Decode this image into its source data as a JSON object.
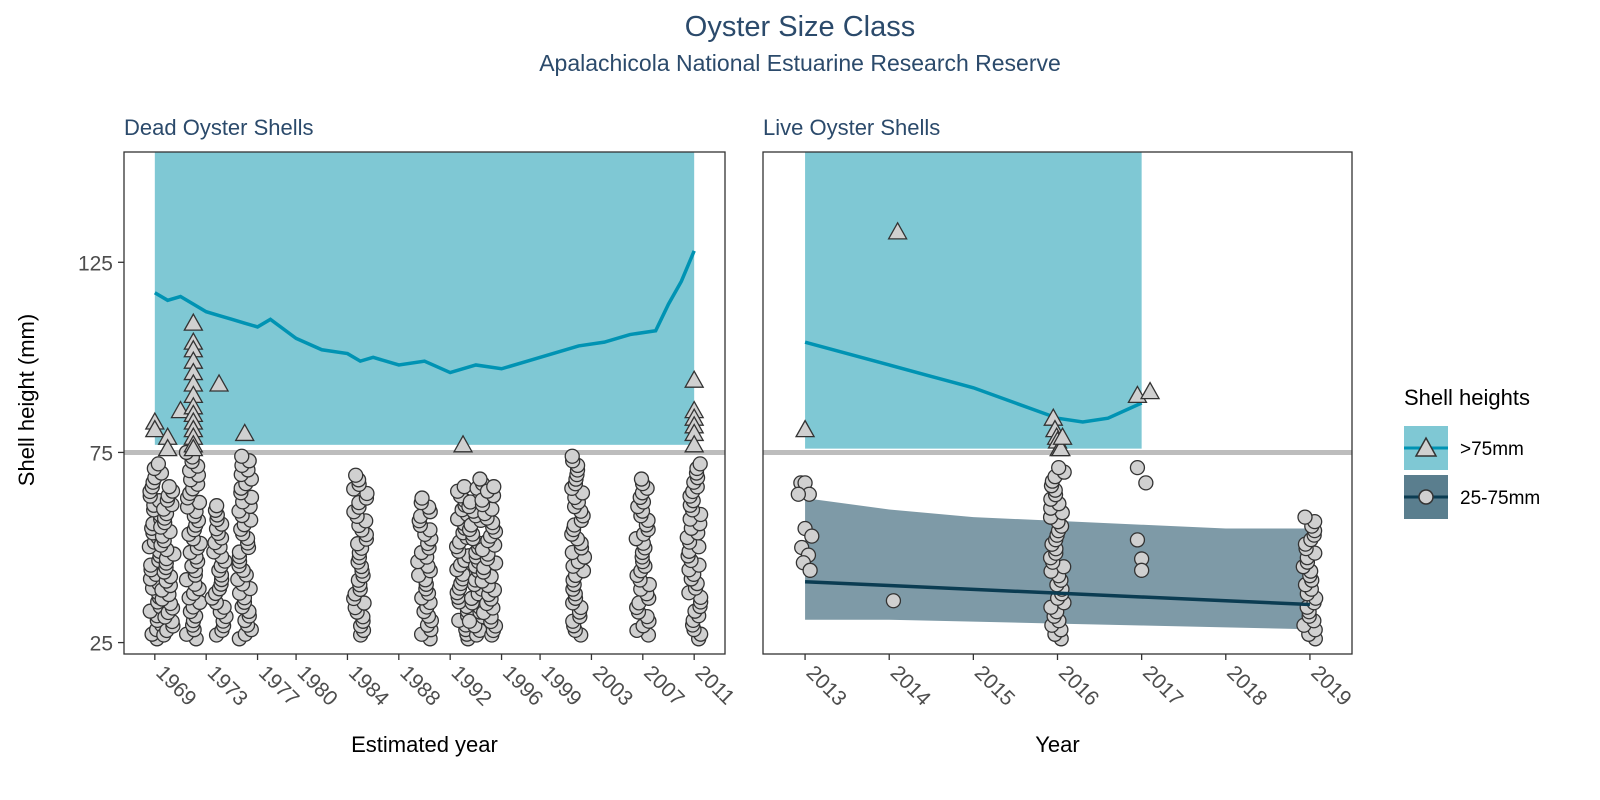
{
  "figure": {
    "title": "Oyster Size Class",
    "subtitle": "Apalachicola National Estuarine Research Reserve",
    "ylabel": "Shell height (mm)",
    "colors": {
      "title": "#2b4a6b",
      "band_large": "#7fc8d4",
      "line_large": "#0093b3",
      "band_small": "#5a7e8e",
      "line_small": "#0b3c52",
      "point_fill": "#d0d0d0",
      "point_stroke": "#333333",
      "threshold": "#bdbdbd"
    }
  },
  "legend": {
    "title": "Shell heights",
    "items": [
      {
        "label": ">75mm",
        "shape": "triangle"
      },
      {
        "label": "25-75mm",
        "shape": "circle"
      }
    ]
  },
  "chart_data": [
    {
      "type": "scatter",
      "panel_title": "Dead Oyster Shells",
      "xlabel": "Estimated year",
      "ylabel": "Shell height (mm)",
      "xlim": [
        1966.6,
        2013.4
      ],
      "ylim": [
        22,
        154
      ],
      "x_ticks": [
        1969,
        1973,
        1977,
        1980,
        1984,
        1988,
        1992,
        1996,
        1999,
        2003,
        2007,
        2011
      ],
      "x_tick_labels": [
        "1969",
        "1973",
        "1977",
        "1980",
        "1984",
        "1988",
        "1992",
        "1996",
        "1999",
        "2003",
        "2007",
        "2011"
      ],
      "y_ticks": [
        25,
        75,
        125
      ],
      "threshold": 75,
      "band_large": {
        "x_range": [
          1969,
          2011
        ],
        "lower": 77,
        "upper": 154
      },
      "trend_large": {
        "x": [
          1969,
          1970,
          1971,
          1972,
          1973,
          1974,
          1975,
          1976,
          1977,
          1978,
          1980,
          1982,
          1984,
          1985,
          1986,
          1988,
          1990,
          1992,
          1994,
          1996,
          1998,
          2000,
          2002,
          2004,
          2006,
          2008,
          2009,
          2010,
          2011
        ],
        "y": [
          117,
          115,
          116,
          114,
          112,
          111,
          110,
          109,
          108,
          110,
          105,
          102,
          101,
          99,
          100,
          98,
          99,
          96,
          98,
          97,
          99,
          101,
          103,
          104,
          106,
          107,
          114,
          120,
          128
        ]
      },
      "large_points": {
        "x": [
          1969,
          1969,
          1970,
          1970,
          1971,
          1972,
          1972,
          1972,
          1972,
          1972,
          1972,
          1972,
          1972,
          1972,
          1972,
          1972,
          1972,
          1972,
          1972,
          1974,
          1976,
          1993,
          2011,
          2011,
          2011,
          2011,
          2011,
          2011
        ],
        "y": [
          83,
          81,
          79,
          76,
          86,
          109,
          104,
          102,
          99,
          96,
          93,
          90,
          87,
          85,
          83,
          81,
          79,
          77,
          76,
          93,
          80,
          77,
          94,
          86,
          84,
          82,
          80,
          77
        ]
      },
      "small_columns": [
        {
          "x": 1969,
          "min": 26,
          "max": 72
        },
        {
          "x": 1970,
          "min": 27,
          "max": 66
        },
        {
          "x": 1972,
          "min": 26,
          "max": 75
        },
        {
          "x": 1974,
          "min": 27,
          "max": 61
        },
        {
          "x": 1976,
          "min": 26,
          "max": 74
        },
        {
          "x": 1985,
          "min": 27,
          "max": 69
        },
        {
          "x": 1990,
          "min": 26,
          "max": 63
        },
        {
          "x": 1993,
          "min": 26,
          "max": 66
        },
        {
          "x": 1994,
          "min": 27,
          "max": 68
        },
        {
          "x": 1995,
          "min": 27,
          "max": 66
        },
        {
          "x": 2002,
          "min": 27,
          "max": 74
        },
        {
          "x": 2007,
          "min": 27,
          "max": 68
        },
        {
          "x": 2011,
          "min": 26,
          "max": 72
        }
      ]
    },
    {
      "type": "scatter",
      "panel_title": "Live Oyster Shells",
      "xlabel": "Year",
      "ylabel": "Shell height (mm)",
      "xlim": [
        2012.5,
        2019.5
      ],
      "ylim": [
        22,
        154
      ],
      "x_ticks": [
        2013,
        2014,
        2015,
        2016,
        2017,
        2018,
        2019
      ],
      "x_tick_labels": [
        "2013",
        "2014",
        "2015",
        "2016",
        "2017",
        "2018",
        "2019"
      ],
      "y_ticks": [
        25,
        75,
        125
      ],
      "threshold": 75,
      "band_large": {
        "x_range": [
          2013,
          2017
        ],
        "lower": 76,
        "upper": 154
      },
      "trend_large": {
        "x": [
          2013,
          2013.5,
          2014,
          2014.5,
          2015,
          2015.5,
          2016,
          2016.3,
          2016.6,
          2017
        ],
        "y": [
          104,
          101,
          98,
          95,
          92,
          88,
          84,
          83,
          84,
          88
        ]
      },
      "band_small": {
        "x": [
          2013,
          2014,
          2015,
          2016,
          2017,
          2018,
          2019
        ],
        "lower": [
          31,
          31,
          30.5,
          30,
          29.5,
          29,
          28.5
        ],
        "upper": [
          63,
          60,
          58,
          57,
          56,
          55,
          55
        ]
      },
      "trend_small": {
        "x": [
          2013,
          2014,
          2015,
          2016,
          2017,
          2018,
          2019
        ],
        "y": [
          41,
          40,
          39,
          38,
          37,
          36,
          35
        ]
      },
      "large_points": {
        "x": [
          2013,
          2014.1,
          2015.95,
          2015.97,
          2015.99,
          2016,
          2016.02,
          2016.04,
          2016.06,
          2016.95,
          2017.1
        ],
        "y": [
          81,
          133,
          84,
          81,
          79,
          78,
          76,
          76,
          79,
          90,
          91
        ],
        "jitter": false
      },
      "small_points": {
        "x": [
          2012.95,
          2013.0,
          2013.05,
          2012.92,
          2013.0,
          2013.08,
          2012.96,
          2013.04,
          2012.98,
          2013.06,
          2014.05,
          2016.95,
          2017.05,
          2016.95,
          2017.0,
          2017.0
        ],
        "y": [
          67,
          67,
          64,
          64,
          55,
          53,
          50,
          48,
          46,
          44,
          36,
          71,
          67,
          52,
          47,
          44
        ],
        "jitter": false
      },
      "small_columns": [
        {
          "x": 2016,
          "min": 26,
          "max": 71
        },
        {
          "x": 2019,
          "min": 26,
          "max": 58
        }
      ]
    }
  ]
}
